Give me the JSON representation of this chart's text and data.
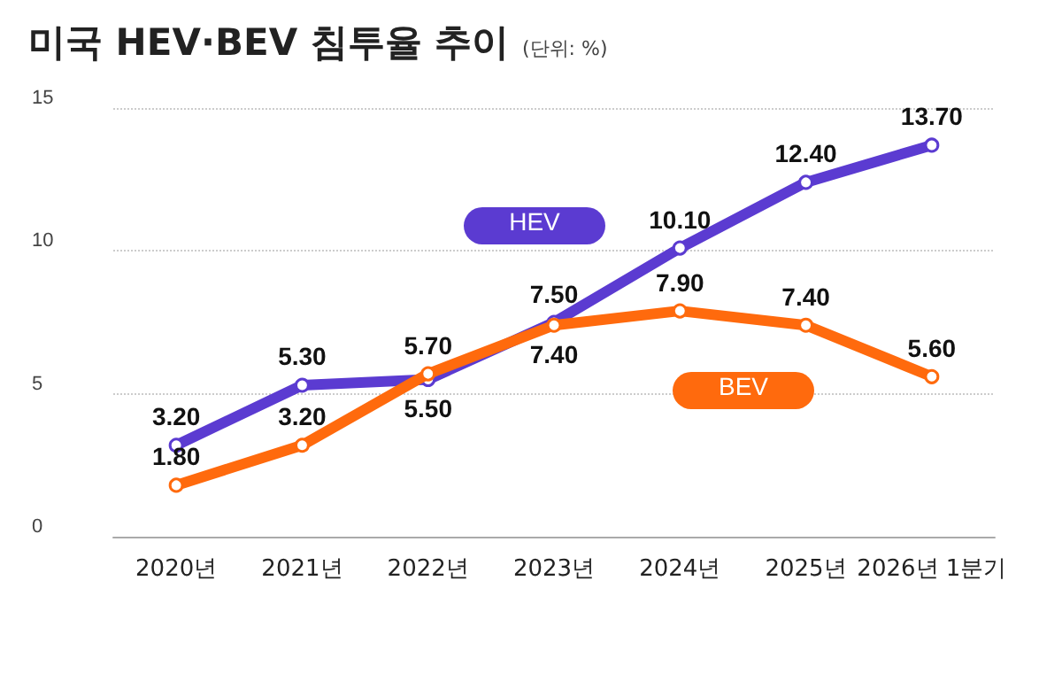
{
  "chart_data": {
    "type": "line",
    "title": "미국 HEV·BEV 침투율 추이",
    "subtitle": "(단위: %)",
    "categories": [
      "2020년",
      "2021년",
      "2022년",
      "2023년",
      "2024년",
      "2025년",
      "2026년 1분기"
    ],
    "series": [
      {
        "name": "HEV",
        "color": "#5b3bd1",
        "values": [
          3.2,
          5.3,
          5.5,
          7.5,
          10.1,
          12.4,
          13.7
        ],
        "value_labels": [
          "3.20",
          "5.30",
          "5.50",
          "7.50",
          "10.10",
          "12.40",
          "13.70"
        ]
      },
      {
        "name": "BEV",
        "color": "#ff6a0d",
        "values": [
          1.8,
          3.2,
          5.7,
          7.4,
          7.9,
          7.4,
          5.6
        ],
        "value_labels": [
          "1.80",
          "3.20",
          "5.70",
          "7.40",
          "7.90",
          "7.40",
          "5.60"
        ]
      }
    ],
    "ylim": [
      0,
      15
    ],
    "yticks": [
      0,
      5,
      10,
      15
    ],
    "grid": "y",
    "legend": false,
    "marker": "circle",
    "line_style": "solid"
  }
}
